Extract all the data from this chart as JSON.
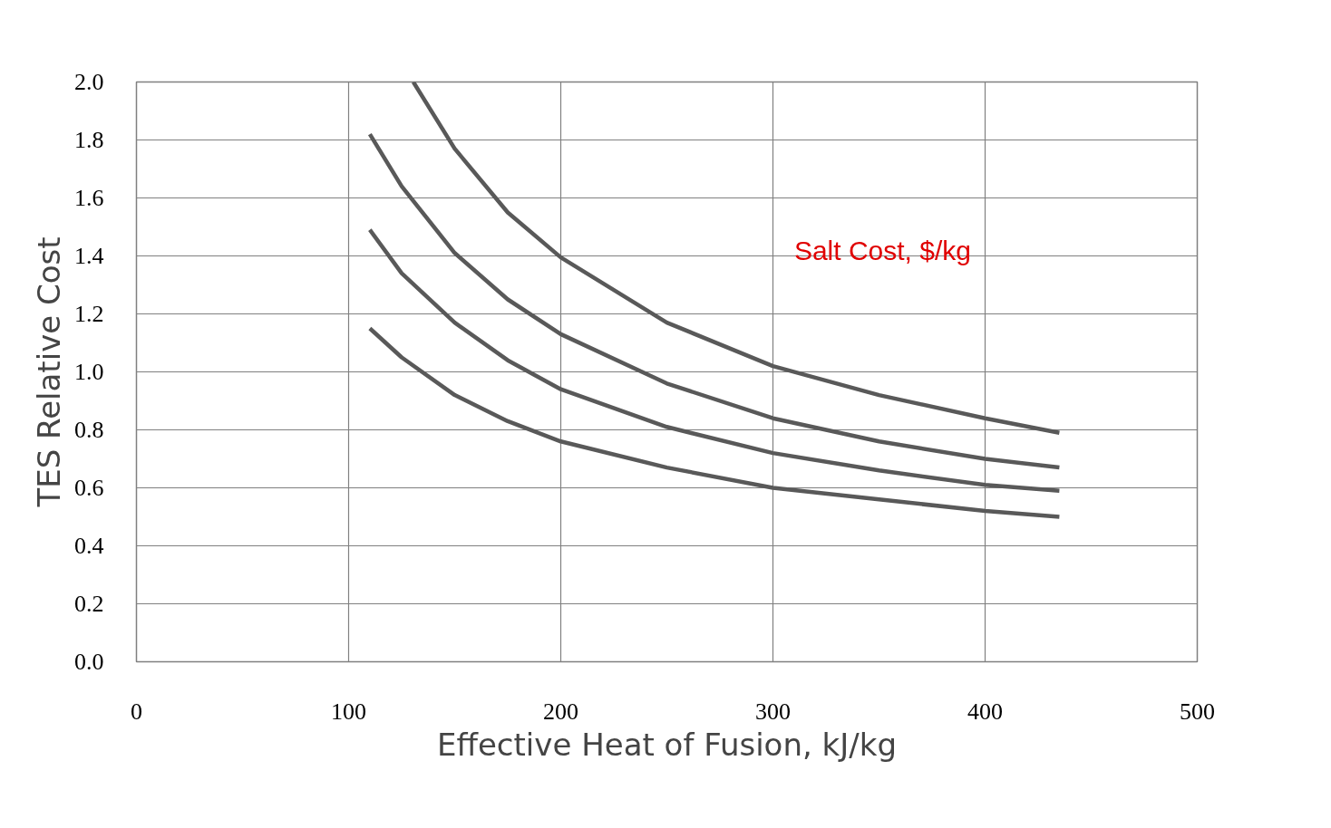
{
  "chart_data": {
    "type": "line",
    "xlabel": "Effective Heat of Fusion, kJ/kg",
    "ylabel": "TES Relative Cost",
    "annotations": [
      "Salt Cost, $/kg"
    ],
    "xlim": [
      0,
      500
    ],
    "xticks": [
      0,
      100,
      200,
      300,
      400,
      500
    ],
    "ylim": [
      0,
      2.0
    ],
    "yticks": [
      {
        "value": 0,
        "label": "0.0"
      },
      0.2,
      0.4,
      0.6,
      0.8,
      {
        "value": 1,
        "label": "1.0"
      },
      1.2,
      1.4,
      1.6,
      1.8,
      {
        "value": 2,
        "label": "2.0"
      }
    ],
    "grid": true,
    "marker": "none",
    "line_style": "solid",
    "series": [
      {
        "color": "#595959",
        "x": [
          130.5,
          150,
          175,
          200,
          250,
          300,
          350,
          400,
          435
        ],
        "values": [
          2.0,
          1.77,
          1.55,
          1.395,
          1.17,
          1.02,
          0.92,
          0.84,
          0.79
        ]
      },
      {
        "color": "#595959",
        "x": [
          110,
          125,
          150,
          175,
          200,
          250,
          300,
          350,
          400,
          435
        ],
        "values": [
          1.82,
          1.64,
          1.41,
          1.25,
          1.13,
          0.96,
          0.84,
          0.76,
          0.7,
          0.67
        ]
      },
      {
        "color": "#595959",
        "x": [
          110,
          125,
          150,
          175,
          200,
          250,
          300,
          350,
          400,
          435
        ],
        "values": [
          1.49,
          1.34,
          1.17,
          1.04,
          0.94,
          0.81,
          0.72,
          0.66,
          0.61,
          0.59
        ]
      },
      {
        "color": "#595959",
        "x": [
          110,
          125,
          150,
          175,
          200,
          250,
          300,
          350,
          400,
          435
        ],
        "values": [
          1.15,
          1.05,
          0.92,
          0.83,
          0.76,
          0.67,
          0.6,
          0.56,
          0.52,
          0.5
        ]
      }
    ]
  }
}
